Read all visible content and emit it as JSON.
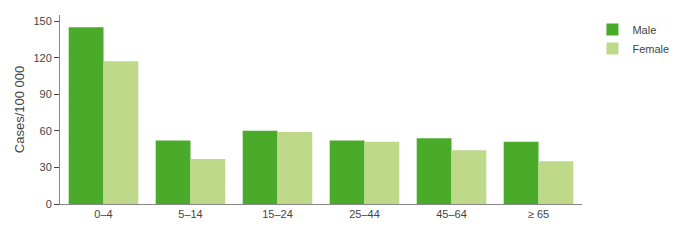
{
  "chart_data": {
    "type": "bar",
    "categories": [
      "0–4",
      "5–14",
      "15–24",
      "25–44",
      "45–64",
      "≥ 65"
    ],
    "series": [
      {
        "name": "Male",
        "color": "#4aaa2a",
        "values": [
          145,
          52,
          60,
          52,
          54,
          51
        ]
      },
      {
        "name": "Female",
        "color": "#bfd98a",
        "values": [
          117,
          37,
          59,
          51,
          44,
          35
        ]
      }
    ],
    "ylabel": "Cases/100 000",
    "ylim": [
      0,
      155
    ],
    "yticks": [
      0,
      30,
      60,
      90,
      120,
      150
    ],
    "grid": false,
    "legend": "upper right"
  }
}
